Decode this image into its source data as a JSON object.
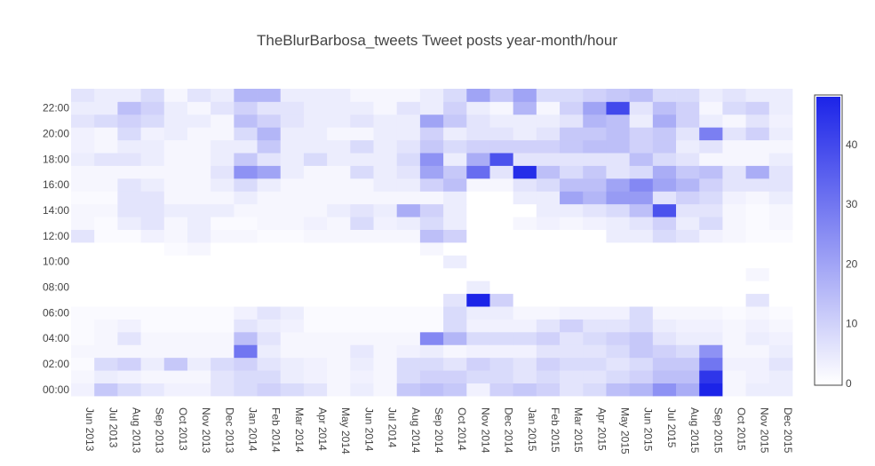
{
  "chart_data": {
    "type": "heatmap",
    "title": "TheBlurBarbosa_tweets Tweet posts year-month/hour",
    "xlabel": "",
    "ylabel": "",
    "x": [
      "Jun 2013",
      "Jul 2013",
      "Aug 2013",
      "Sep 2013",
      "Oct 2013",
      "Nov 2013",
      "Dec 2013",
      "Jan 2014",
      "Feb 2014",
      "Mar 2014",
      "Apr 2014",
      "May 2014",
      "Jun 2014",
      "Jul 2014",
      "Aug 2014",
      "Sep 2014",
      "Oct 2014",
      "Nov 2014",
      "Dec 2014",
      "Jan 2015",
      "Feb 2015",
      "Mar 2015",
      "Apr 2015",
      "May 2015",
      "Jun 2015",
      "Jul 2015",
      "Aug 2015",
      "Sep 2015",
      "Oct 2015",
      "Nov 2015",
      "Dec 2015"
    ],
    "y": [
      0,
      1,
      2,
      3,
      4,
      5,
      6,
      7,
      8,
      9,
      10,
      11,
      12,
      13,
      14,
      15,
      16,
      17,
      18,
      19,
      20,
      21,
      22,
      23
    ],
    "y_tick_labels": [
      "00:00",
      "02:00",
      "04:00",
      "06:00",
      "08:00",
      "10:00",
      "12:00",
      "14:00",
      "16:00",
      "18:00",
      "20:00",
      "22:00"
    ],
    "y_tick_hours": [
      0,
      2,
      4,
      6,
      8,
      10,
      12,
      14,
      16,
      18,
      20,
      22
    ],
    "z": [
      [
        3,
        12,
        8,
        5,
        3,
        3,
        6,
        8,
        10,
        8,
        6,
        2,
        4,
        2,
        12,
        14,
        12,
        3,
        10,
        12,
        10,
        6,
        8,
        14,
        16,
        24,
        18,
        48,
        2,
        4,
        4
      ],
      [
        2,
        4,
        3,
        2,
        2,
        2,
        6,
        8,
        8,
        4,
        3,
        2,
        3,
        2,
        8,
        10,
        10,
        8,
        8,
        6,
        8,
        6,
        6,
        8,
        10,
        14,
        14,
        44,
        2,
        3,
        4
      ],
      [
        1,
        8,
        10,
        4,
        12,
        4,
        8,
        10,
        6,
        4,
        3,
        2,
        4,
        2,
        8,
        8,
        6,
        10,
        8,
        6,
        10,
        8,
        8,
        6,
        8,
        12,
        12,
        30,
        3,
        3,
        6
      ],
      [
        2,
        2,
        2,
        2,
        2,
        2,
        2,
        30,
        4,
        2,
        2,
        2,
        5,
        2,
        3,
        4,
        2,
        3,
        3,
        3,
        6,
        6,
        6,
        8,
        12,
        10,
        8,
        24,
        2,
        2,
        4
      ],
      [
        1,
        2,
        6,
        2,
        2,
        2,
        2,
        14,
        6,
        2,
        2,
        2,
        2,
        2,
        2,
        26,
        16,
        8,
        8,
        8,
        10,
        6,
        8,
        10,
        12,
        6,
        4,
        4,
        2,
        4,
        3
      ],
      [
        1,
        2,
        3,
        1,
        1,
        1,
        1,
        6,
        4,
        3,
        1,
        1,
        1,
        1,
        1,
        1,
        8,
        3,
        3,
        3,
        6,
        10,
        6,
        6,
        8,
        4,
        3,
        3,
        2,
        3,
        2
      ],
      [
        1,
        1,
        1,
        1,
        1,
        1,
        1,
        3,
        6,
        4,
        1,
        1,
        1,
        1,
        1,
        1,
        8,
        4,
        4,
        2,
        2,
        3,
        3,
        3,
        8,
        2,
        2,
        2,
        1,
        2,
        1
      ],
      [
        0,
        0,
        0,
        0,
        0,
        0,
        0,
        0,
        0,
        0,
        0,
        0,
        0,
        0,
        0,
        0,
        6,
        48,
        10,
        0,
        0,
        0,
        0,
        0,
        0,
        0,
        0,
        0,
        0,
        6,
        0
      ],
      [
        0,
        0,
        0,
        0,
        0,
        0,
        0,
        0,
        0,
        0,
        0,
        0,
        0,
        0,
        0,
        0,
        0,
        4,
        0,
        0,
        0,
        0,
        0,
        0,
        0,
        0,
        0,
        0,
        0,
        0,
        0
      ],
      [
        0,
        0,
        0,
        0,
        0,
        0,
        0,
        0,
        0,
        0,
        0,
        0,
        0,
        0,
        0,
        0,
        0,
        0,
        0,
        0,
        0,
        0,
        0,
        0,
        0,
        0,
        0,
        0,
        0,
        2,
        0
      ],
      [
        0,
        0,
        0,
        0,
        0,
        0,
        0,
        0,
        0,
        0,
        0,
        0,
        0,
        0,
        0,
        0,
        4,
        0,
        0,
        0,
        0,
        0,
        0,
        0,
        0,
        0,
        0,
        0,
        0,
        0,
        0
      ],
      [
        0,
        0,
        0,
        0,
        1,
        2,
        0,
        0,
        0,
        0,
        0,
        0,
        0,
        0,
        0,
        2,
        0,
        0,
        0,
        0,
        0,
        0,
        0,
        0,
        0,
        0,
        0,
        0,
        0,
        0,
        0
      ],
      [
        6,
        1,
        1,
        3,
        2,
        4,
        2,
        2,
        1,
        1,
        2,
        2,
        2,
        2,
        2,
        14,
        10,
        0,
        0,
        0,
        0,
        0,
        0,
        4,
        4,
        8,
        6,
        3,
        2,
        1,
        1
      ],
      [
        2,
        1,
        4,
        6,
        2,
        4,
        1,
        1,
        2,
        2,
        3,
        2,
        8,
        3,
        4,
        8,
        4,
        0,
        0,
        2,
        3,
        2,
        3,
        4,
        6,
        10,
        4,
        8,
        2,
        1,
        2
      ],
      [
        2,
        2,
        6,
        6,
        4,
        4,
        4,
        2,
        2,
        2,
        2,
        4,
        6,
        4,
        18,
        10,
        4,
        0,
        0,
        0,
        4,
        4,
        6,
        8,
        14,
        38,
        6,
        6,
        2,
        1,
        2
      ],
      [
        1,
        1,
        6,
        6,
        2,
        2,
        2,
        4,
        2,
        2,
        2,
        2,
        2,
        2,
        2,
        2,
        4,
        0,
        0,
        4,
        4,
        20,
        16,
        22,
        22,
        6,
        10,
        8,
        3,
        2,
        4
      ],
      [
        2,
        2,
        6,
        4,
        2,
        2,
        4,
        8,
        4,
        2,
        2,
        2,
        2,
        4,
        4,
        10,
        14,
        2,
        2,
        6,
        8,
        14,
        14,
        20,
        26,
        20,
        16,
        10,
        6,
        6,
        6
      ],
      [
        2,
        2,
        2,
        2,
        2,
        2,
        6,
        24,
        20,
        4,
        2,
        2,
        8,
        4,
        6,
        20,
        12,
        32,
        6,
        46,
        14,
        8,
        12,
        6,
        8,
        18,
        12,
        14,
        6,
        18,
        6
      ],
      [
        4,
        6,
        6,
        4,
        2,
        2,
        4,
        12,
        6,
        4,
        8,
        4,
        4,
        4,
        8,
        24,
        4,
        18,
        38,
        6,
        6,
        6,
        6,
        6,
        14,
        8,
        6,
        2,
        2,
        2,
        4
      ],
      [
        3,
        2,
        4,
        4,
        2,
        2,
        4,
        4,
        12,
        4,
        4,
        4,
        8,
        4,
        6,
        12,
        8,
        10,
        10,
        10,
        10,
        12,
        14,
        14,
        10,
        12,
        4,
        6,
        2,
        2,
        2
      ],
      [
        3,
        2,
        8,
        3,
        4,
        2,
        2,
        8,
        16,
        4,
        4,
        2,
        2,
        4,
        4,
        10,
        4,
        6,
        6,
        4,
        6,
        12,
        12,
        14,
        10,
        12,
        6,
        28,
        6,
        10,
        4
      ],
      [
        6,
        8,
        10,
        8,
        4,
        4,
        2,
        14,
        10,
        6,
        4,
        4,
        6,
        4,
        4,
        20,
        12,
        6,
        4,
        4,
        4,
        6,
        16,
        14,
        4,
        18,
        10,
        4,
        2,
        6,
        3
      ],
      [
        4,
        4,
        14,
        10,
        4,
        2,
        6,
        10,
        6,
        6,
        4,
        4,
        4,
        2,
        6,
        4,
        10,
        4,
        2,
        16,
        2,
        10,
        20,
        40,
        6,
        14,
        10,
        2,
        8,
        10,
        4
      ],
      [
        6,
        4,
        4,
        8,
        2,
        6,
        4,
        16,
        16,
        4,
        4,
        4,
        2,
        2,
        2,
        4,
        8,
        20,
        12,
        20,
        8,
        8,
        10,
        12,
        14,
        8,
        8,
        4,
        6,
        4,
        4
      ]
    ],
    "zmin": 0,
    "zmax": 48,
    "colorbar_ticks": [
      0,
      10,
      20,
      30,
      40
    ],
    "colorscale": [
      "#ffffff",
      "#1c24e8"
    ],
    "grid": false,
    "legend": "colorbar-right"
  }
}
